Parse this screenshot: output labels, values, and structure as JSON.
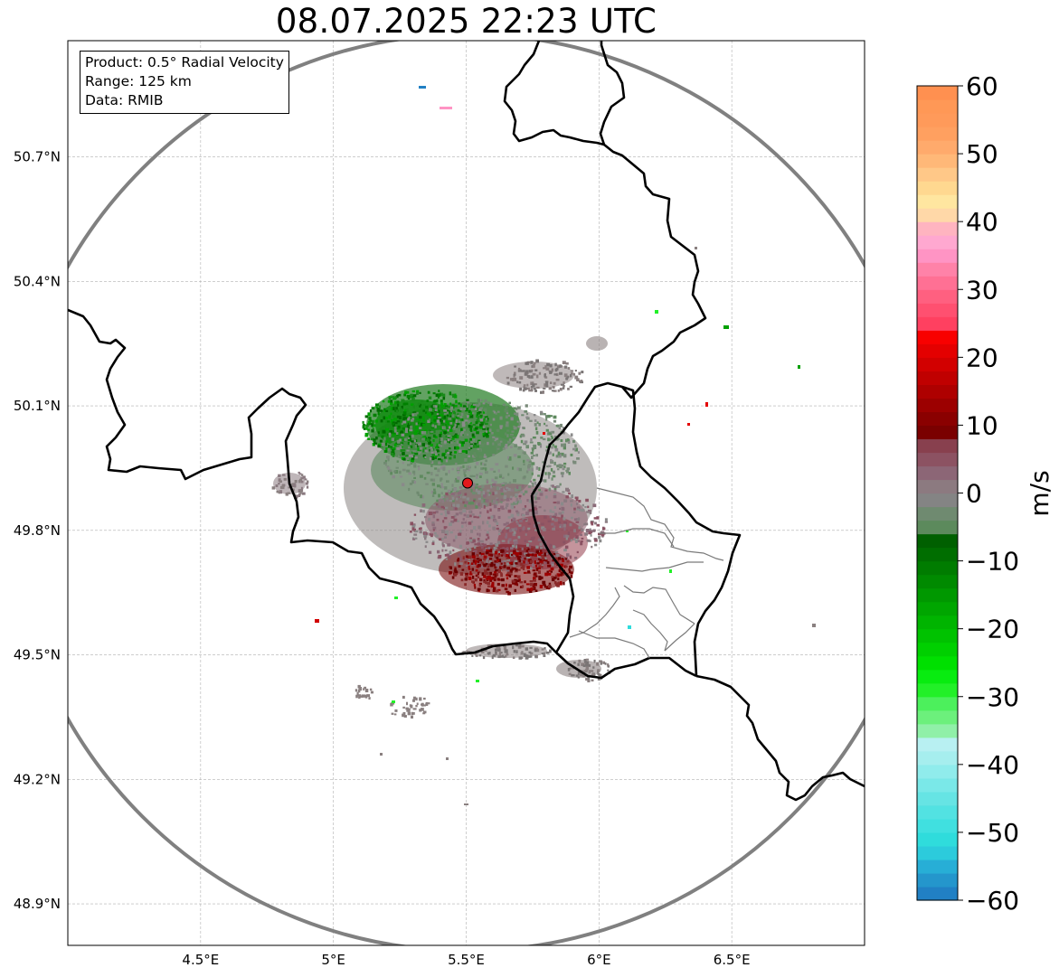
{
  "title": "08.07.2025 22:23 UTC",
  "info_box": {
    "product": "Product: 0.5° Radial Velocity",
    "range": "Range: 125 km",
    "data": "Data: RMIB"
  },
  "axes": {
    "lon_range": [
      4.0,
      7.0
    ],
    "lat_range": [
      48.8,
      50.98
    ],
    "x_ticks": [
      {
        "value": 4.5,
        "label": "4.5°E"
      },
      {
        "value": 5.0,
        "label": "5°E"
      },
      {
        "value": 5.5,
        "label": "5.5°E"
      },
      {
        "value": 6.0,
        "label": "6°E"
      },
      {
        "value": 6.5,
        "label": "6.5°E"
      }
    ],
    "y_ticks": [
      {
        "value": 48.9,
        "label": "48.9°N"
      },
      {
        "value": 49.2,
        "label": "49.2°N"
      },
      {
        "value": 49.5,
        "label": "49.5°N"
      },
      {
        "value": 49.8,
        "label": "49.8°N"
      },
      {
        "value": 50.1,
        "label": "50.1°N"
      },
      {
        "value": 50.4,
        "label": "50.4°N"
      },
      {
        "value": 50.7,
        "label": "50.7°N"
      }
    ],
    "grid": true
  },
  "radar": {
    "site_lon": 5.505,
    "site_lat": 49.914,
    "site_color": "#e41a1c",
    "range_ring_color": "#808080"
  },
  "colorbar": {
    "unit": "m/s",
    "vmin": -60,
    "vmax": 60,
    "ticks": [
      {
        "value": 60,
        "label": "60"
      },
      {
        "value": 50,
        "label": "50"
      },
      {
        "value": 40,
        "label": "40"
      },
      {
        "value": 30,
        "label": "30"
      },
      {
        "value": 20,
        "label": "20"
      },
      {
        "value": 10,
        "label": "10"
      },
      {
        "value": 0,
        "label": "0"
      },
      {
        "value": -10,
        "label": "−10"
      },
      {
        "value": -20,
        "label": "−20"
      },
      {
        "value": -30,
        "label": "−30"
      },
      {
        "value": -40,
        "label": "−40"
      },
      {
        "value": -50,
        "label": "−50"
      },
      {
        "value": -60,
        "label": "−60"
      }
    ],
    "colors": [
      "#2180c4",
      "#2496cc",
      "#27aed6",
      "#2ccbdc",
      "#2fdcdc",
      "#40e0e0",
      "#52e2e2",
      "#66e4e4",
      "#7ae8e8",
      "#90ecec",
      "#a6eeee",
      "#b8f0f2",
      "#90f0a8",
      "#6cf07c",
      "#4cf05c",
      "#22f028",
      "#08ec10",
      "#00e000",
      "#00d000",
      "#00c200",
      "#00b400",
      "#00a600",
      "#009800",
      "#008a00",
      "#007c00",
      "#006e00",
      "#006000",
      "#5c8a5c",
      "#6f8a70",
      "#848484",
      "#8c7a80",
      "#8c6676",
      "#8c5262",
      "#88404e",
      "#7a0000",
      "#8a0000",
      "#9c0000",
      "#ae0000",
      "#c00000",
      "#d20000",
      "#e40000",
      "#f80000",
      "#ff4060",
      "#ff5070",
      "#ff6080",
      "#ff7094",
      "#ff82a8",
      "#ff94c4",
      "#ffa8d0",
      "#ffb4c0",
      "#ffd8a8",
      "#ffe6a0",
      "#ffd890",
      "#ffc888",
      "#ffb878",
      "#ffaa6c",
      "#ffa060",
      "#ff9a5a",
      "#ff9856",
      "#ff9050"
    ]
  }
}
